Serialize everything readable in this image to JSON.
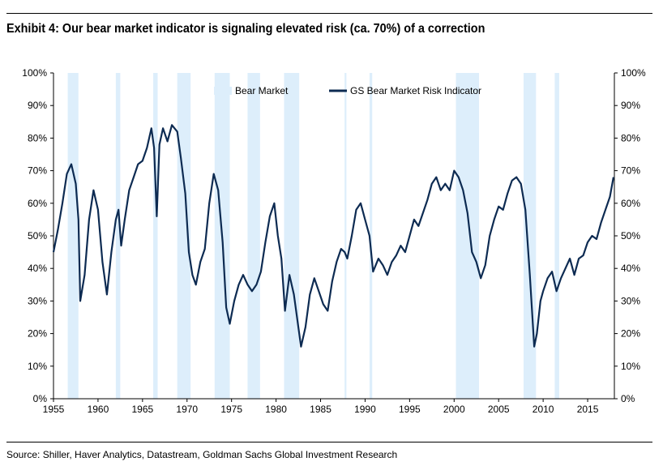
{
  "title": "Exhibit 4: Our bear market indicator is signaling elevated risk (ca. 70%) of a correction",
  "source": "Source: Shiller, Haver Analytics, Datastream, Goldman Sachs Global Investment Research",
  "colors": {
    "line": "#0d2b52",
    "bear_band": "#ddeefb"
  },
  "chart_data": {
    "type": "line",
    "title": "",
    "xlabel": "",
    "ylabel": "",
    "xlim": [
      1955,
      2018
    ],
    "ylim": [
      0,
      100
    ],
    "x_ticks": [
      1955,
      1960,
      1965,
      1970,
      1975,
      1980,
      1985,
      1990,
      1995,
      2000,
      2005,
      2010,
      2015
    ],
    "y_ticks": [
      0,
      10,
      20,
      30,
      40,
      50,
      60,
      70,
      80,
      90,
      100
    ],
    "y_tick_labels": [
      "0%",
      "10%",
      "20%",
      "30%",
      "40%",
      "50%",
      "60%",
      "70%",
      "80%",
      "90%",
      "100%"
    ],
    "secondary_y_axis": true,
    "grid": false,
    "legend_position": "top-center",
    "legend": [
      "Bear Market",
      "GS Bear Market Risk Indicator"
    ],
    "bear_markets": [
      [
        1956.6,
        1957.8
      ],
      [
        1962.0,
        1962.5
      ],
      [
        1966.2,
        1966.7
      ],
      [
        1968.9,
        1970.4
      ],
      [
        1973.1,
        1974.8
      ],
      [
        1976.8,
        1978.2
      ],
      [
        1980.9,
        1982.6
      ],
      [
        1987.7,
        1987.9
      ],
      [
        1990.5,
        1990.8
      ],
      [
        2000.2,
        2002.8
      ],
      [
        2007.8,
        2009.2
      ],
      [
        2011.3,
        2011.8
      ]
    ],
    "series": [
      {
        "name": "GS Bear Market Risk Indicator",
        "x": [
          1955.0,
          1955.5,
          1956.0,
          1956.5,
          1957.0,
          1957.5,
          1957.8,
          1958.0,
          1958.5,
          1959.0,
          1959.5,
          1960.0,
          1960.5,
          1961.0,
          1961.5,
          1962.0,
          1962.3,
          1962.6,
          1963.0,
          1963.5,
          1964.0,
          1964.5,
          1965.0,
          1965.5,
          1966.0,
          1966.3,
          1966.6,
          1966.9,
          1967.3,
          1967.8,
          1968.3,
          1968.9,
          1969.3,
          1969.8,
          1970.2,
          1970.6,
          1971.0,
          1971.5,
          1972.0,
          1972.5,
          1973.0,
          1973.5,
          1974.0,
          1974.4,
          1974.8,
          1975.3,
          1975.8,
          1976.3,
          1976.8,
          1977.3,
          1977.8,
          1978.3,
          1978.8,
          1979.3,
          1979.8,
          1980.2,
          1980.6,
          1981.0,
          1981.5,
          1982.0,
          1982.5,
          1982.8,
          1983.3,
          1983.8,
          1984.3,
          1984.8,
          1985.3,
          1985.8,
          1986.3,
          1986.8,
          1987.3,
          1987.7,
          1988.0,
          1988.5,
          1989.0,
          1989.5,
          1990.0,
          1990.5,
          1990.9,
          1991.5,
          1992.0,
          1992.5,
          1993.0,
          1993.5,
          1994.0,
          1994.5,
          1995.0,
          1995.5,
          1996.0,
          1996.5,
          1997.0,
          1997.5,
          1998.0,
          1998.5,
          1999.0,
          1999.5,
          2000.0,
          2000.5,
          2001.0,
          2001.5,
          2002.0,
          2002.5,
          2003.0,
          2003.5,
          2004.0,
          2004.5,
          2005.0,
          2005.5,
          2006.0,
          2006.5,
          2007.0,
          2007.5,
          2008.0,
          2008.5,
          2009.0,
          2009.3,
          2009.7,
          2010.0,
          2010.5,
          2011.0,
          2011.5,
          2012.0,
          2012.5,
          2013.0,
          2013.5,
          2014.0,
          2014.5,
          2015.0,
          2015.5,
          2016.0,
          2016.5,
          2017.0,
          2017.5,
          2017.9
        ],
        "y": [
          45,
          52,
          60,
          69,
          72,
          66,
          55,
          30,
          38,
          55,
          64,
          58,
          42,
          32,
          45,
          55,
          58,
          47,
          55,
          64,
          68,
          72,
          73,
          77,
          83,
          77,
          56,
          78,
          83,
          79,
          84,
          82,
          74,
          63,
          45,
          38,
          35,
          42,
          46,
          60,
          69,
          64,
          48,
          28,
          23,
          30,
          35,
          38,
          35,
          33,
          35,
          39,
          48,
          56,
          60,
          50,
          43,
          27,
          38,
          32,
          22,
          16,
          22,
          32,
          37,
          33,
          29,
          27,
          36,
          42,
          46,
          45,
          43,
          50,
          58,
          60,
          55,
          50,
          39,
          43,
          41,
          38,
          42,
          44,
          47,
          45,
          50,
          55,
          53,
          57,
          61,
          66,
          68,
          64,
          66,
          64,
          70,
          68,
          64,
          57,
          45,
          42,
          37,
          41,
          50,
          55,
          59,
          58,
          63,
          67,
          68,
          66,
          58,
          38,
          16,
          20,
          30,
          33,
          37,
          39,
          33,
          37,
          40,
          43,
          38,
          43,
          44,
          48,
          50,
          49,
          54,
          58,
          62,
          68
        ]
      }
    ]
  }
}
